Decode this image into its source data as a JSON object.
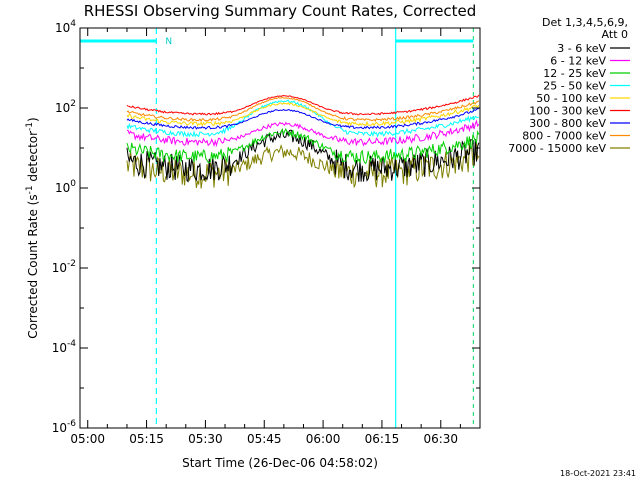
{
  "chart_data": {
    "type": "line",
    "title": "RHESSI Observing Summary Count Rates, Corrected",
    "xlabel": "Start Time (26-Dec-06 04:58:02)",
    "ylabel_main": "Corrected Count Rate (s",
    "ylabel_sup1": "-1",
    "ylabel_mid": " detector",
    "ylabel_sup2": "-1",
    "ylabel_end": ")",
    "yscale": "log",
    "ylim_exp": [
      -6,
      4
    ],
    "ytick_exps": [
      -6,
      -4,
      -2,
      0,
      2,
      4
    ],
    "ytick_base": "10",
    "xlim_min": [
      298.03,
      400
    ],
    "xticks_min": [
      300,
      315,
      330,
      345,
      360,
      375,
      390
    ],
    "xtick_labels": [
      "05:00",
      "05:15",
      "05:30",
      "05:45",
      "06:00",
      "06:15",
      "06:30"
    ],
    "legend_header": [
      "Det 1,3,4,5,6,9,",
      "Att 0"
    ],
    "flag_label": "N",
    "footer": "18-Oct-2021 23:41",
    "cyan_color": "#00ffff",
    "night_segments_min": [
      [
        298.03,
        317.5
      ],
      [
        378.5,
        398.3
      ]
    ],
    "night_boundaries_min": [
      317.5,
      378.5
    ],
    "saa_boundaries_min": [
      398.3
    ],
    "series": [
      {
        "name": "3 - 6 keV",
        "color": "#000000",
        "base": 3,
        "peak": 20,
        "noise": 2.2
      },
      {
        "name": "6 - 12 keV",
        "color": "#ff00ff",
        "base": 14,
        "peak": 40,
        "noise": 1.25
      },
      {
        "name": "12 - 25 keV",
        "color": "#00d000",
        "base": 6,
        "peak": 25,
        "noise": 1.5
      },
      {
        "name": "25 - 50 keV",
        "color": "#00ffff",
        "base": 22,
        "peak": 150,
        "noise": 1.15
      },
      {
        "name": "50 - 100 keV",
        "color": "#ffd700",
        "base": 40,
        "peak": 130,
        "noise": 1.12
      },
      {
        "name": "100 - 300 keV",
        "color": "#ff0000",
        "base": 70,
        "peak": 200,
        "noise": 1.06
      },
      {
        "name": "300 - 800 keV",
        "color": "#0000ff",
        "base": 32,
        "peak": 90,
        "noise": 1.08
      },
      {
        "name": "800 - 7000 keV",
        "color": "#ff8c00",
        "base": 50,
        "peak": 180,
        "noise": 1.08
      },
      {
        "name": "7000 - 15000 keV",
        "color": "#808000",
        "base": 2.3,
        "peak": 8,
        "noise": 2.4
      }
    ]
  }
}
